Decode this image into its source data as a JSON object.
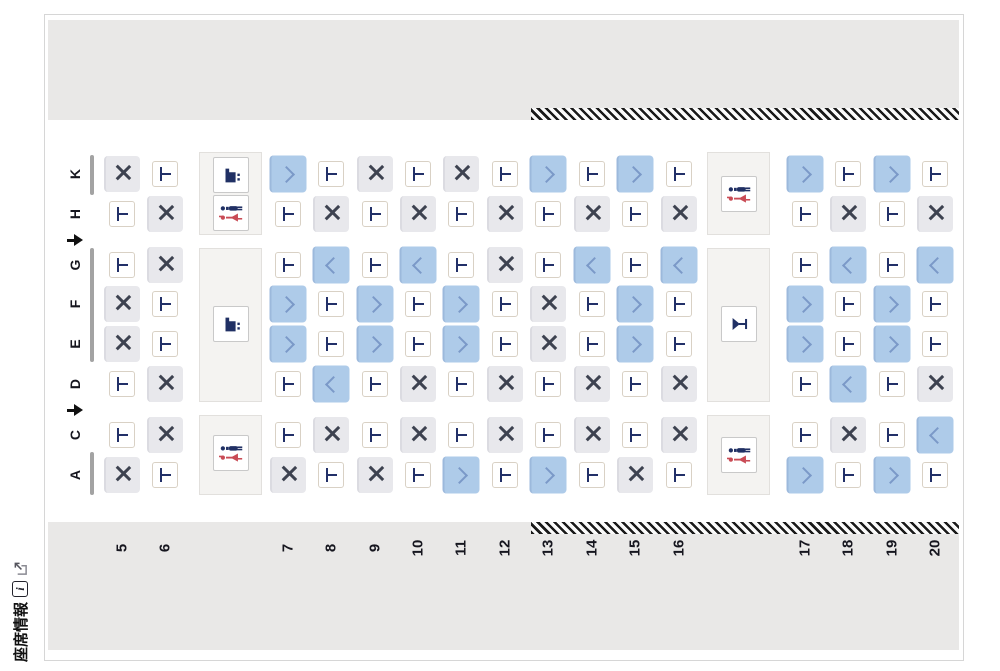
{
  "footer": {
    "label": "座席情報",
    "icons": [
      "info-icon",
      "external-link-icon"
    ]
  },
  "cabin": {
    "letter_column": [
      {
        "type": "letter",
        "label": "K"
      },
      {
        "type": "letter",
        "label": "H"
      },
      {
        "type": "aisle-arrow"
      },
      {
        "type": "letter",
        "label": "G"
      },
      {
        "type": "letter",
        "label": "F"
      },
      {
        "type": "letter",
        "label": "E"
      },
      {
        "type": "letter",
        "label": "D"
      },
      {
        "type": "aisle-arrow"
      },
      {
        "type": "letter",
        "label": "C"
      },
      {
        "type": "letter",
        "label": "A"
      }
    ],
    "row_numbers": [
      "5",
      "6",
      "7",
      "8",
      "9",
      "10",
      "11",
      "12",
      "13",
      "14",
      "15",
      "16",
      "17",
      "18",
      "19",
      "20"
    ],
    "cell_code_legend": {
      "X": "occupied-gray-cross",
      "T": "unavailable-white-tee",
      "R": "available-blue-chevron-right",
      "L": "available-blue-chevron-left"
    },
    "seat_rows": [
      {
        "letter": "K",
        "cells": [
          "X",
          "T",
          "R",
          "T",
          "X",
          "T",
          "X",
          "T",
          "R",
          "T",
          "R",
          "T",
          "R",
          "T",
          "R",
          "T"
        ]
      },
      {
        "letter": "H",
        "cells": [
          "T",
          "X",
          "T",
          "X",
          "T",
          "X",
          "T",
          "X",
          "T",
          "X",
          "T",
          "X",
          "T",
          "X",
          "T",
          "X"
        ]
      },
      {
        "letter": "G",
        "cells": [
          "T",
          "X",
          "T",
          "L",
          "T",
          "L",
          "T",
          "X",
          "T",
          "L",
          "T",
          "L",
          "T",
          "L",
          "T",
          "L"
        ]
      },
      {
        "letter": "F",
        "cells": [
          "X",
          "T",
          "R",
          "T",
          "R",
          "T",
          "R",
          "T",
          "X",
          "T",
          "R",
          "T",
          "R",
          "T",
          "R",
          "T"
        ]
      },
      {
        "letter": "E",
        "cells": [
          "X",
          "T",
          "R",
          "T",
          "R",
          "T",
          "R",
          "T",
          "X",
          "T",
          "R",
          "T",
          "R",
          "T",
          "R",
          "T"
        ]
      },
      {
        "letter": "D",
        "cells": [
          "T",
          "X",
          "T",
          "L",
          "T",
          "X",
          "T",
          "X",
          "T",
          "X",
          "T",
          "X",
          "T",
          "L",
          "T",
          "X"
        ]
      },
      {
        "letter": "C",
        "cells": [
          "T",
          "X",
          "T",
          "X",
          "T",
          "X",
          "T",
          "X",
          "T",
          "X",
          "T",
          "X",
          "T",
          "X",
          "T",
          "L"
        ]
      },
      {
        "letter": "A",
        "cells": [
          "X",
          "T",
          "X",
          "T",
          "X",
          "T",
          "R",
          "T",
          "R",
          "T",
          "X",
          "T",
          "R",
          "T",
          "R",
          "T"
        ]
      }
    ],
    "facilities": {
      "left_column": [
        {
          "icons": [
            "galley-icon",
            "lavatory-icon"
          ]
        },
        {
          "icons": [
            "galley-icon"
          ]
        },
        {
          "icons": [
            "lavatory-icon"
          ]
        }
      ],
      "right_column": [
        {
          "icons": [
            "lavatory-icon"
          ]
        },
        {
          "icons": [
            "bar-icon"
          ]
        },
        {
          "icons": [
            "lavatory-icon"
          ]
        }
      ]
    },
    "hatched_zone_rows": "13-20"
  },
  "colors": {
    "seat_available": "#aecbe9",
    "seat_available_chevron": "#7b99c8",
    "seat_occupied": "#e8e8ec",
    "seat_occupied_cross": "#3d4250",
    "seat_unavailable_glyph": "#223068",
    "fuselage_band": "#e9e8e7",
    "icon_navy": "#203064",
    "icon_red": "#c94b55"
  }
}
